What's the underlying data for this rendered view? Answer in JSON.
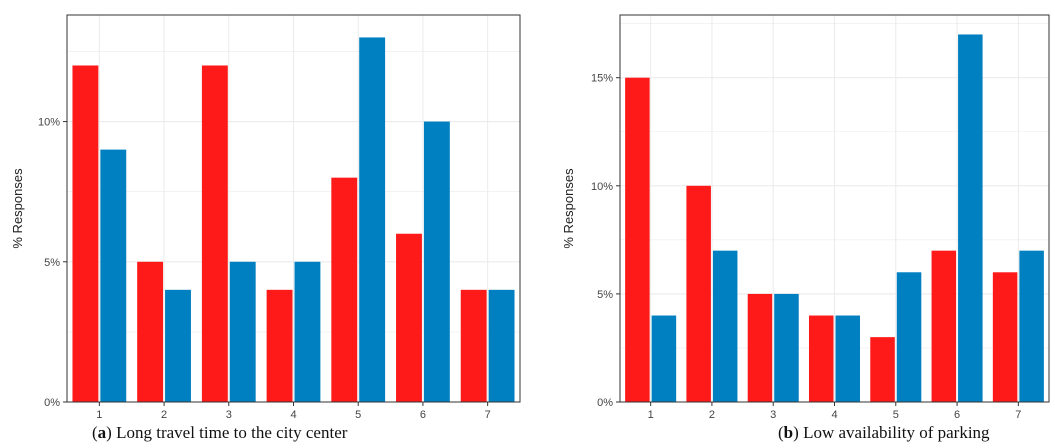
{
  "colors": {
    "series_a": "#ff1a1a",
    "series_b": "#0080c0",
    "grid": "#ebebeb",
    "panel_border": "#333333"
  },
  "charts": [
    {
      "type": "bar",
      "ylabel": "% Responses",
      "categories": [
        "1",
        "2",
        "3",
        "4",
        "5",
        "6",
        "7"
      ],
      "ylim": [
        0,
        13.8
      ],
      "yticks": [
        0,
        5,
        10
      ],
      "ytick_labels": [
        "0%",
        "5%",
        "10%"
      ],
      "series": [
        {
          "values": [
            12,
            5,
            12,
            4,
            8,
            6,
            4
          ]
        },
        {
          "values": [
            9,
            4,
            5,
            5,
            13,
            10,
            4
          ]
        }
      ],
      "caption": {
        "letter": "a",
        "text": "Long travel time to the city center"
      }
    },
    {
      "type": "bar",
      "ylabel": "% Responses",
      "categories": [
        "1",
        "2",
        "3",
        "4",
        "5",
        "6",
        "7"
      ],
      "ylim": [
        0,
        17.9
      ],
      "yticks": [
        0,
        5,
        10,
        15
      ],
      "ytick_labels": [
        "0%",
        "5%",
        "10%",
        "15%"
      ],
      "series": [
        {
          "values": [
            15,
            10,
            5,
            4,
            3,
            7,
            6
          ]
        },
        {
          "values": [
            4,
            7,
            5,
            4,
            6,
            17,
            7
          ]
        }
      ],
      "caption": {
        "letter": "b",
        "text": "Low availability of parking"
      }
    }
  ]
}
